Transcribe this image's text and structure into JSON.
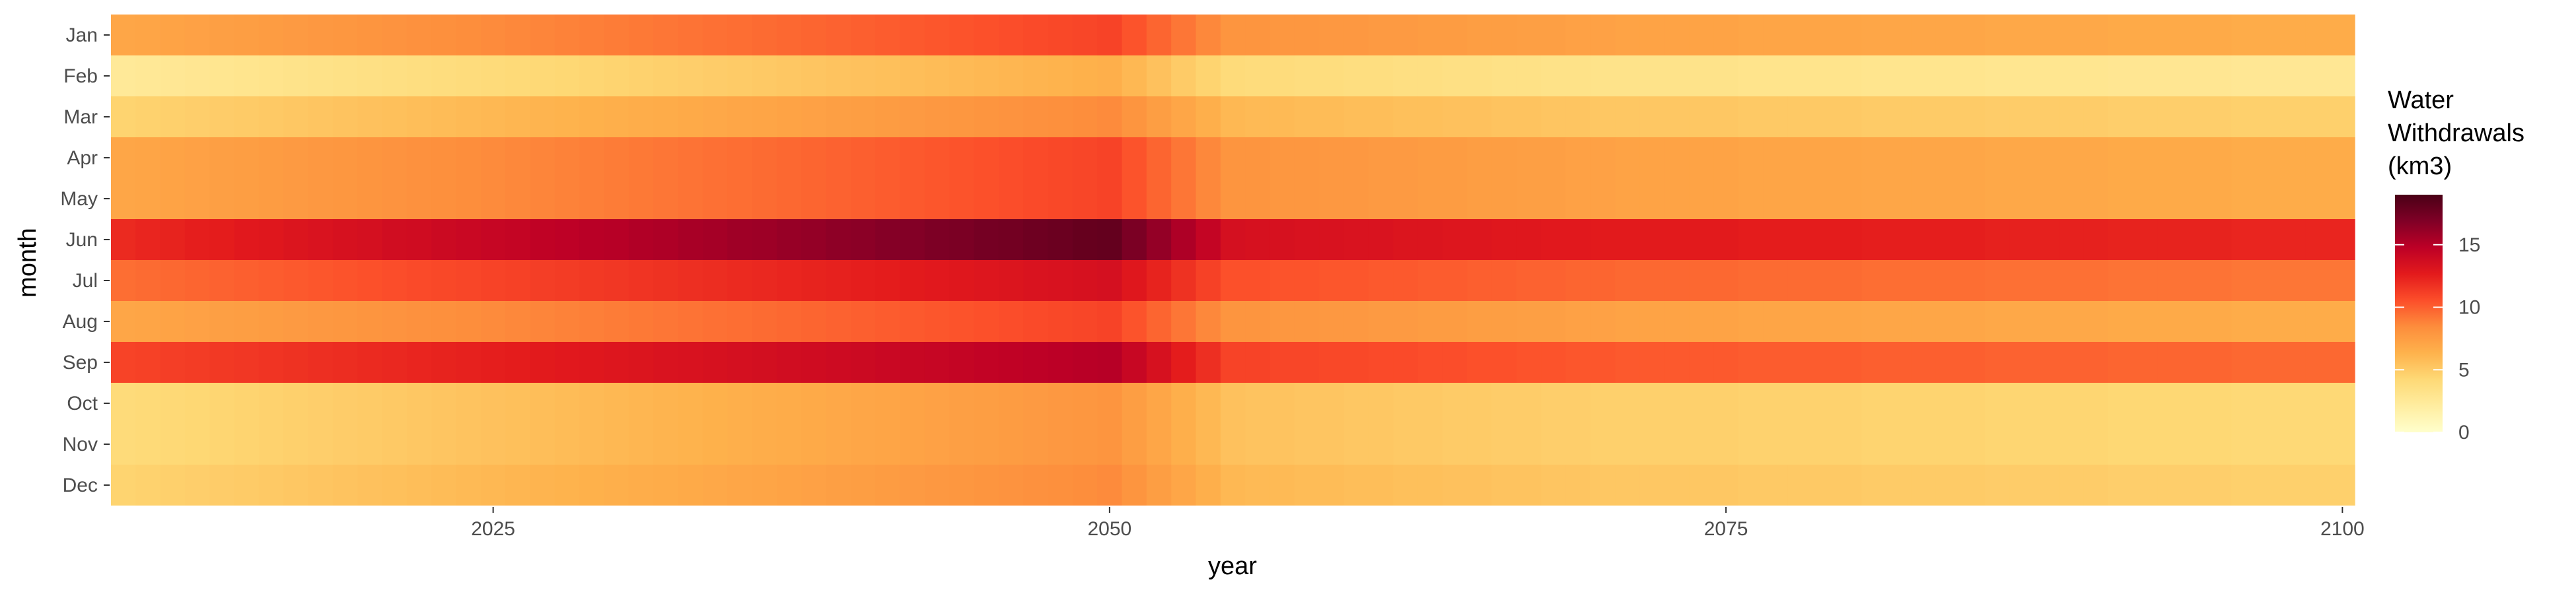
{
  "chart_data": {
    "type": "heatmap",
    "title": "",
    "xlabel": "year",
    "ylabel": "month",
    "x_range": [
      2010,
      2100
    ],
    "x_ticks": [
      2025,
      2050,
      2075,
      2100
    ],
    "x_tick_labels": [
      "2025",
      "2050",
      "2075",
      "2100"
    ],
    "months": [
      "Jan",
      "Feb",
      "Mar",
      "Apr",
      "May",
      "Jun",
      "Jul",
      "Aug",
      "Sep",
      "Oct",
      "Nov",
      "Dec"
    ],
    "years": [
      2010,
      2011,
      2012,
      2013,
      2014,
      2015,
      2016,
      2017,
      2018,
      2019,
      2020,
      2021,
      2022,
      2023,
      2024,
      2025,
      2026,
      2027,
      2028,
      2029,
      2030,
      2031,
      2032,
      2033,
      2034,
      2035,
      2036,
      2037,
      2038,
      2039,
      2040,
      2041,
      2042,
      2043,
      2044,
      2045,
      2046,
      2047,
      2048,
      2049,
      2050,
      2051,
      2052,
      2053,
      2054,
      2055,
      2056,
      2057,
      2058,
      2059,
      2060,
      2061,
      2062,
      2063,
      2064,
      2065,
      2066,
      2067,
      2068,
      2069,
      2070,
      2071,
      2072,
      2073,
      2074,
      2075,
      2076,
      2077,
      2078,
      2079,
      2080,
      2081,
      2082,
      2083,
      2084,
      2085,
      2086,
      2087,
      2088,
      2089,
      2090,
      2091,
      2092,
      2093,
      2094,
      2095,
      2096,
      2097,
      2098,
      2099,
      2100
    ],
    "series": [
      {
        "name": "Jan",
        "values": [
          7.0,
          7.1,
          7.2,
          7.3,
          7.4,
          7.5,
          7.6,
          7.7,
          7.8,
          7.9,
          8.0,
          8.1,
          8.2,
          8.3,
          8.4,
          8.5,
          8.6,
          8.7,
          8.8,
          8.9,
          9.0,
          9.1,
          9.2,
          9.3,
          9.4,
          9.5,
          9.6,
          9.7,
          9.8,
          9.9,
          10.0,
          10.1,
          10.2,
          10.3,
          10.4,
          10.5,
          10.6,
          10.7,
          10.8,
          10.9,
          11.0,
          10.4,
          9.8,
          9.2,
          8.6,
          8.0,
          8.0,
          7.9,
          7.9,
          7.8,
          7.8,
          7.7,
          7.7,
          7.6,
          7.6,
          7.5,
          7.5,
          7.4,
          7.4,
          7.3,
          7.3,
          7.2,
          7.2,
          7.2,
          7.2,
          7.2,
          7.1,
          7.1,
          7.1,
          7.1,
          7.1,
          7.0,
          7.0,
          7.0,
          7.0,
          7.0,
          6.9,
          6.9,
          6.9,
          6.9,
          6.9,
          6.8,
          6.8,
          6.8,
          6.8,
          6.8,
          6.7,
          6.7,
          6.7,
          6.7,
          6.7
        ]
      },
      {
        "name": "Feb",
        "values": [
          2.5,
          2.6,
          2.7,
          2.8,
          2.9,
          3.0,
          3.1,
          3.2,
          3.3,
          3.4,
          3.5,
          3.6,
          3.7,
          3.8,
          3.9,
          4.0,
          4.1,
          4.2,
          4.3,
          4.4,
          4.5,
          4.6,
          4.7,
          4.8,
          4.9,
          5.0,
          5.1,
          5.2,
          5.3,
          5.4,
          5.5,
          5.6,
          5.7,
          5.8,
          5.9,
          6.0,
          6.1,
          6.2,
          6.3,
          6.4,
          6.5,
          6.0,
          5.5,
          5.0,
          4.5,
          4.0,
          3.9,
          3.9,
          3.8,
          3.8,
          3.7,
          3.7,
          3.6,
          3.6,
          3.5,
          3.5,
          3.4,
          3.4,
          3.3,
          3.3,
          3.2,
          3.2,
          3.2,
          3.2,
          3.2,
          3.2,
          3.1,
          3.1,
          3.1,
          3.1,
          3.1,
          3.0,
          3.0,
          3.0,
          3.0,
          3.0,
          2.9,
          2.9,
          2.9,
          2.9,
          2.9,
          2.8,
          2.8,
          2.8,
          2.8,
          2.8,
          2.7,
          2.7,
          2.7,
          2.7,
          2.7
        ]
      },
      {
        "name": "Mar",
        "values": [
          4.5,
          4.6,
          4.7,
          4.8,
          4.9,
          5.0,
          5.1,
          5.2,
          5.3,
          5.4,
          5.5,
          5.6,
          5.7,
          5.8,
          5.9,
          6.0,
          6.1,
          6.2,
          6.3,
          6.4,
          6.5,
          6.6,
          6.7,
          6.8,
          6.9,
          7.0,
          7.1,
          7.2,
          7.3,
          7.4,
          7.5,
          7.6,
          7.7,
          7.8,
          7.9,
          8.0,
          8.1,
          8.2,
          8.3,
          8.4,
          8.5,
          8.0,
          7.5,
          7.0,
          6.5,
          6.0,
          5.9,
          5.9,
          5.8,
          5.8,
          5.7,
          5.7,
          5.6,
          5.6,
          5.5,
          5.5,
          5.4,
          5.4,
          5.3,
          5.3,
          5.2,
          5.2,
          5.2,
          5.2,
          5.2,
          5.2,
          5.1,
          5.1,
          5.1,
          5.1,
          5.1,
          5.0,
          5.0,
          5.0,
          5.0,
          5.0,
          4.9,
          4.9,
          4.9,
          4.9,
          4.9,
          4.8,
          4.8,
          4.8,
          4.8,
          4.8,
          4.7,
          4.7,
          4.7,
          4.7,
          4.7
        ]
      },
      {
        "name": "Apr",
        "values": [
          7.0,
          7.1,
          7.2,
          7.3,
          7.4,
          7.5,
          7.6,
          7.7,
          7.8,
          7.9,
          8.0,
          8.1,
          8.2,
          8.3,
          8.4,
          8.5,
          8.6,
          8.7,
          8.8,
          8.9,
          9.0,
          9.1,
          9.2,
          9.3,
          9.4,
          9.5,
          9.6,
          9.7,
          9.8,
          9.9,
          10.0,
          10.1,
          10.2,
          10.3,
          10.4,
          10.5,
          10.6,
          10.7,
          10.8,
          10.9,
          11.0,
          10.4,
          9.8,
          9.2,
          8.6,
          8.0,
          8.0,
          7.9,
          7.9,
          7.8,
          7.8,
          7.7,
          7.7,
          7.6,
          7.6,
          7.5,
          7.5,
          7.4,
          7.4,
          7.3,
          7.3,
          7.2,
          7.2,
          7.2,
          7.2,
          7.2,
          7.1,
          7.1,
          7.1,
          7.1,
          7.1,
          7.0,
          7.0,
          7.0,
          7.0,
          7.0,
          6.9,
          6.9,
          6.9,
          6.9,
          6.9,
          6.8,
          6.8,
          6.8,
          6.8,
          6.8,
          6.7,
          6.7,
          6.7,
          6.7,
          6.7
        ]
      },
      {
        "name": "May",
        "values": [
          7.0,
          7.1,
          7.2,
          7.3,
          7.4,
          7.5,
          7.6,
          7.7,
          7.8,
          7.9,
          8.0,
          8.1,
          8.2,
          8.3,
          8.4,
          8.5,
          8.6,
          8.7,
          8.8,
          8.9,
          9.0,
          9.1,
          9.2,
          9.3,
          9.4,
          9.5,
          9.6,
          9.7,
          9.8,
          9.9,
          10.0,
          10.1,
          10.2,
          10.3,
          10.4,
          10.5,
          10.6,
          10.7,
          10.8,
          10.9,
          11.0,
          10.4,
          9.8,
          9.2,
          8.6,
          8.0,
          8.0,
          7.9,
          7.9,
          7.8,
          7.8,
          7.7,
          7.7,
          7.6,
          7.6,
          7.5,
          7.5,
          7.4,
          7.4,
          7.3,
          7.3,
          7.2,
          7.2,
          7.2,
          7.2,
          7.2,
          7.1,
          7.1,
          7.1,
          7.1,
          7.1,
          7.0,
          7.0,
          7.0,
          7.0,
          7.0,
          6.9,
          6.9,
          6.9,
          6.9,
          6.9,
          6.8,
          6.8,
          6.8,
          6.8,
          6.8,
          6.7,
          6.7,
          6.7,
          6.7,
          6.7
        ]
      },
      {
        "name": "Jun",
        "values": [
          12.0,
          12.2,
          12.3,
          12.5,
          12.6,
          12.8,
          12.9,
          13.1,
          13.2,
          13.4,
          13.5,
          13.7,
          13.8,
          14.0,
          14.1,
          14.3,
          14.4,
          14.6,
          14.7,
          14.9,
          15.0,
          15.2,
          15.3,
          15.5,
          15.6,
          15.8,
          15.9,
          16.1,
          16.2,
          16.4,
          16.5,
          16.7,
          16.8,
          17.0,
          17.1,
          17.3,
          17.4,
          17.6,
          17.7,
          17.9,
          18.0,
          17.1,
          16.2,
          15.3,
          14.4,
          13.5,
          13.4,
          13.4,
          13.3,
          13.3,
          13.2,
          13.2,
          13.1,
          13.1,
          13.0,
          13.0,
          12.9,
          12.9,
          12.8,
          12.8,
          12.7,
          12.7,
          12.7,
          12.7,
          12.7,
          12.7,
          12.6,
          12.6,
          12.6,
          12.6,
          12.6,
          12.5,
          12.5,
          12.5,
          12.5,
          12.5,
          12.4,
          12.4,
          12.4,
          12.4,
          12.4,
          12.3,
          12.3,
          12.3,
          12.3,
          12.3,
          12.2,
          12.2,
          12.2,
          12.2,
          12.2
        ]
      },
      {
        "name": "Jul",
        "values": [
          9.5,
          9.6,
          9.7,
          9.8,
          9.9,
          10.0,
          10.1,
          10.2,
          10.3,
          10.4,
          10.5,
          10.6,
          10.7,
          10.8,
          10.9,
          11.0,
          11.1,
          11.2,
          11.3,
          11.4,
          11.5,
          11.6,
          11.7,
          11.8,
          11.9,
          12.0,
          12.1,
          12.2,
          12.3,
          12.4,
          12.5,
          12.6,
          12.7,
          12.8,
          12.9,
          13.0,
          13.1,
          13.2,
          13.3,
          13.4,
          13.5,
          12.9,
          12.3,
          11.7,
          11.1,
          10.5,
          10.5,
          10.4,
          10.4,
          10.3,
          10.3,
          10.2,
          10.2,
          10.1,
          10.1,
          10.0,
          10.0,
          9.9,
          9.9,
          9.8,
          9.8,
          9.7,
          9.7,
          9.7,
          9.7,
          9.7,
          9.6,
          9.6,
          9.6,
          9.6,
          9.6,
          9.5,
          9.5,
          9.5,
          9.5,
          9.5,
          9.4,
          9.4,
          9.4,
          9.4,
          9.4,
          9.3,
          9.3,
          9.3,
          9.3,
          9.3,
          9.2,
          9.2,
          9.2,
          9.2,
          9.2
        ]
      },
      {
        "name": "Aug",
        "values": [
          7.0,
          7.1,
          7.2,
          7.3,
          7.4,
          7.5,
          7.6,
          7.7,
          7.8,
          7.9,
          8.0,
          8.1,
          8.2,
          8.3,
          8.4,
          8.5,
          8.6,
          8.7,
          8.8,
          8.9,
          9.0,
          9.1,
          9.2,
          9.3,
          9.4,
          9.5,
          9.6,
          9.7,
          9.8,
          9.9,
          10.0,
          10.1,
          10.2,
          10.3,
          10.4,
          10.5,
          10.6,
          10.7,
          10.8,
          10.9,
          11.0,
          10.4,
          9.8,
          9.2,
          8.6,
          8.0,
          8.0,
          7.9,
          7.9,
          7.8,
          7.8,
          7.7,
          7.7,
          7.6,
          7.6,
          7.5,
          7.5,
          7.4,
          7.4,
          7.3,
          7.3,
          7.2,
          7.2,
          7.2,
          7.2,
          7.2,
          7.1,
          7.1,
          7.1,
          7.1,
          7.1,
          7.0,
          7.0,
          7.0,
          7.0,
          7.0,
          6.9,
          6.9,
          6.9,
          6.9,
          6.9,
          6.8,
          6.8,
          6.8,
          6.8,
          6.8,
          6.7,
          6.7,
          6.7,
          6.7,
          6.7
        ]
      },
      {
        "name": "Sep",
        "values": [
          11.0,
          11.1,
          11.2,
          11.3,
          11.4,
          11.5,
          11.6,
          11.7,
          11.8,
          11.9,
          12.0,
          12.1,
          12.2,
          12.3,
          12.4,
          12.5,
          12.6,
          12.7,
          12.8,
          12.9,
          13.0,
          13.1,
          13.2,
          13.3,
          13.4,
          13.5,
          13.6,
          13.7,
          13.8,
          13.9,
          14.0,
          14.1,
          14.2,
          14.3,
          14.4,
          14.5,
          14.6,
          14.7,
          14.8,
          14.9,
          15.0,
          14.2,
          13.4,
          12.6,
          11.8,
          11.0,
          11.0,
          10.9,
          10.9,
          10.8,
          10.8,
          10.7,
          10.7,
          10.6,
          10.6,
          10.5,
          10.5,
          10.4,
          10.4,
          10.3,
          10.3,
          10.2,
          10.2,
          10.2,
          10.2,
          10.2,
          10.1,
          10.1,
          10.1,
          10.1,
          10.1,
          10.0,
          10.0,
          10.0,
          10.0,
          10.0,
          9.9,
          9.9,
          9.9,
          9.9,
          9.9,
          9.8,
          9.8,
          9.8,
          9.8,
          9.8,
          9.7,
          9.7,
          9.7,
          9.7,
          9.7
        ]
      },
      {
        "name": "Oct",
        "values": [
          4.0,
          4.1,
          4.2,
          4.3,
          4.4,
          4.5,
          4.6,
          4.7,
          4.8,
          4.9,
          5.0,
          5.1,
          5.2,
          5.3,
          5.4,
          5.5,
          5.6,
          5.7,
          5.8,
          5.9,
          6.0,
          6.1,
          6.2,
          6.3,
          6.4,
          6.5,
          6.6,
          6.7,
          6.8,
          6.9,
          7.0,
          7.1,
          7.2,
          7.3,
          7.4,
          7.5,
          7.6,
          7.7,
          7.8,
          7.9,
          8.0,
          7.5,
          7.0,
          6.5,
          6.0,
          5.5,
          5.4,
          5.4,
          5.3,
          5.3,
          5.2,
          5.2,
          5.1,
          5.1,
          5.0,
          5.0,
          4.9,
          4.9,
          4.8,
          4.8,
          4.7,
          4.7,
          4.7,
          4.7,
          4.7,
          4.7,
          4.6,
          4.6,
          4.6,
          4.6,
          4.6,
          4.5,
          4.5,
          4.5,
          4.5,
          4.5,
          4.4,
          4.4,
          4.4,
          4.4,
          4.4,
          4.3,
          4.3,
          4.3,
          4.3,
          4.3,
          4.2,
          4.2,
          4.2,
          4.2,
          4.2
        ]
      },
      {
        "name": "Nov",
        "values": [
          4.0,
          4.1,
          4.2,
          4.3,
          4.4,
          4.5,
          4.6,
          4.7,
          4.8,
          4.9,
          5.0,
          5.1,
          5.2,
          5.3,
          5.4,
          5.5,
          5.6,
          5.7,
          5.8,
          5.9,
          6.0,
          6.1,
          6.2,
          6.3,
          6.4,
          6.5,
          6.6,
          6.7,
          6.8,
          6.9,
          7.0,
          7.1,
          7.2,
          7.3,
          7.4,
          7.5,
          7.6,
          7.7,
          7.8,
          7.9,
          8.0,
          7.5,
          7.0,
          6.5,
          6.0,
          5.5,
          5.4,
          5.4,
          5.3,
          5.3,
          5.2,
          5.2,
          5.1,
          5.1,
          5.0,
          5.0,
          4.9,
          4.9,
          4.8,
          4.8,
          4.7,
          4.7,
          4.7,
          4.7,
          4.7,
          4.7,
          4.6,
          4.6,
          4.6,
          4.6,
          4.6,
          4.5,
          4.5,
          4.5,
          4.5,
          4.5,
          4.4,
          4.4,
          4.4,
          4.4,
          4.4,
          4.3,
          4.3,
          4.3,
          4.3,
          4.3,
          4.2,
          4.2,
          4.2,
          4.2,
          4.2
        ]
      },
      {
        "name": "Dec",
        "values": [
          4.5,
          4.6,
          4.7,
          4.8,
          4.9,
          5.0,
          5.1,
          5.2,
          5.3,
          5.4,
          5.5,
          5.6,
          5.7,
          5.8,
          5.9,
          6.0,
          6.1,
          6.2,
          6.3,
          6.4,
          6.5,
          6.6,
          6.7,
          6.8,
          6.9,
          7.0,
          7.1,
          7.2,
          7.3,
          7.4,
          7.5,
          7.6,
          7.7,
          7.8,
          7.9,
          8.0,
          8.1,
          8.2,
          8.3,
          8.4,
          8.5,
          8.0,
          7.5,
          7.0,
          6.5,
          6.0,
          5.9,
          5.9,
          5.8,
          5.8,
          5.7,
          5.7,
          5.6,
          5.6,
          5.5,
          5.5,
          5.4,
          5.4,
          5.3,
          5.3,
          5.2,
          5.2,
          5.2,
          5.2,
          5.2,
          5.2,
          5.1,
          5.1,
          5.1,
          5.1,
          5.1,
          5.0,
          5.0,
          5.0,
          5.0,
          5.0,
          4.9,
          4.9,
          4.9,
          4.9,
          4.9,
          4.8,
          4.8,
          4.8,
          4.8,
          4.8,
          4.7,
          4.7,
          4.7,
          4.7,
          4.7
        ]
      }
    ],
    "legend": {
      "title_lines": [
        "Water",
        "Withdrawals",
        "(km3)"
      ],
      "ticks": [
        0,
        5,
        10,
        15
      ],
      "tick_labels": [
        "0",
        "5",
        "10",
        "15"
      ],
      "range": [
        0,
        19
      ],
      "placement": "right"
    },
    "colorscale": {
      "name": "YlOrRd",
      "stops": [
        "#ffffcc",
        "#ffeda0",
        "#fed976",
        "#feb24c",
        "#fd8d3c",
        "#fc4e2a",
        "#e31a1c",
        "#bd0026",
        "#800026",
        "#4a0016"
      ]
    },
    "grid": false
  }
}
